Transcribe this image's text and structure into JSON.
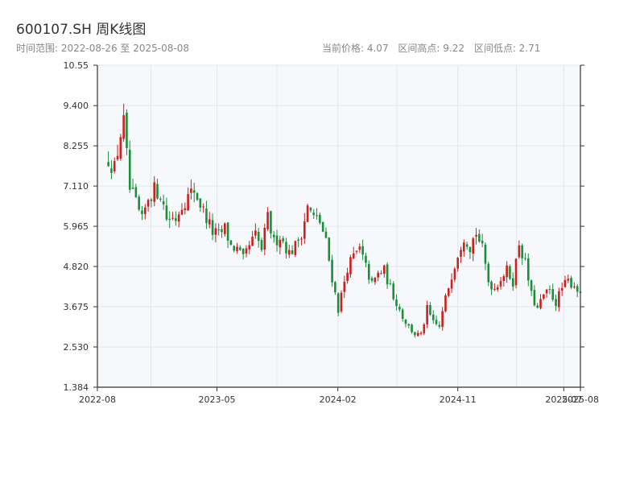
{
  "header": {
    "title": "600107.SH 周K线图",
    "range_label": "时间范围: 2022-08-26 至 2025-08-08",
    "current_price": "当前价格: 4.07",
    "high_price": "区间高点: 9.22",
    "low_price": "区间低点: 2.71"
  },
  "chart_data": {
    "type": "candlestick",
    "title": "600107.SH 周K线图",
    "y_ticks": [
      "1.384",
      "2.530",
      "3.675",
      "4.820",
      "5.965",
      "7.110",
      "8.255",
      "9.400",
      "10.55"
    ],
    "ylim": [
      1.384,
      10.55
    ],
    "x_ticks": [
      {
        "label": "2022-08",
        "date": "2022-08-01"
      },
      {
        "label": "2023-05",
        "date": "2023-05-01"
      },
      {
        "label": "2024-02",
        "date": "2024-02-01"
      },
      {
        "label": "2024-11",
        "date": "2024-11-01"
      },
      {
        "label": "2025-07",
        "date": "2025-07-01"
      },
      {
        "label": "2025-08",
        "date": "2025-08-08"
      }
    ],
    "xlim": [
      "2022-08-01",
      "2025-08-08"
    ],
    "grid": true,
    "colors": {
      "up": "#cc1f1f",
      "down": "#1a8f3a"
    },
    "anchors": [
      [
        "2022-08-26",
        7.9
      ],
      [
        "2022-09-09",
        7.6
      ],
      [
        "2022-09-23",
        8.6
      ],
      [
        "2022-09-30",
        8.9
      ],
      [
        "2022-10-14",
        7.0
      ],
      [
        "2022-10-28",
        6.6
      ],
      [
        "2022-11-11",
        6.1
      ],
      [
        "2022-11-25",
        6.8
      ],
      [
        "2022-12-09",
        7.0
      ],
      [
        "2022-12-23",
        6.9
      ],
      [
        "2023-01-06",
        6.2
      ],
      [
        "2023-01-27",
        6.2
      ],
      [
        "2023-02-10",
        6.6
      ],
      [
        "2023-02-24",
        6.8
      ],
      [
        "2023-03-10",
        7.0
      ],
      [
        "2023-03-24",
        6.6
      ],
      [
        "2023-04-07",
        6.2
      ],
      [
        "2023-04-21",
        5.8
      ],
      [
        "2023-05-05",
        5.7
      ],
      [
        "2023-05-19",
        5.9
      ],
      [
        "2023-06-02",
        5.4
      ],
      [
        "2023-06-16",
        5.3
      ],
      [
        "2023-06-30",
        5.0
      ],
      [
        "2023-07-14",
        5.4
      ],
      [
        "2023-07-28",
        5.7
      ],
      [
        "2023-08-11",
        5.3
      ],
      [
        "2023-08-25",
        6.2
      ],
      [
        "2023-09-08",
        5.5
      ],
      [
        "2023-09-22",
        5.7
      ],
      [
        "2023-10-13",
        5.2
      ],
      [
        "2023-10-27",
        5.4
      ],
      [
        "2023-11-10",
        5.8
      ],
      [
        "2023-11-24",
        6.5
      ],
      [
        "2023-12-08",
        6.2
      ],
      [
        "2023-12-22",
        6.1
      ],
      [
        "2024-01-05",
        5.5
      ],
      [
        "2024-01-19",
        4.5
      ],
      [
        "2024-02-02",
        3.6
      ],
      [
        "2024-02-23",
        4.8
      ],
      [
        "2024-03-08",
        5.1
      ],
      [
        "2024-03-22",
        5.3
      ],
      [
        "2024-04-05",
        4.8
      ],
      [
        "2024-04-19",
        4.3
      ],
      [
        "2024-05-03",
        4.6
      ],
      [
        "2024-05-17",
        4.7
      ],
      [
        "2024-05-31",
        4.2
      ],
      [
        "2024-06-14",
        3.8
      ],
      [
        "2024-06-28",
        3.4
      ],
      [
        "2024-07-12",
        3.1
      ],
      [
        "2024-07-26",
        2.9
      ],
      [
        "2024-08-09",
        2.85
      ],
      [
        "2024-08-23",
        3.6
      ],
      [
        "2024-09-06",
        3.2
      ],
      [
        "2024-09-20",
        3.1
      ],
      [
        "2024-10-04",
        3.9
      ],
      [
        "2024-10-18",
        4.6
      ],
      [
        "2024-11-01",
        5.2
      ],
      [
        "2024-11-15",
        5.7
      ],
      [
        "2024-11-29",
        5.4
      ],
      [
        "2024-12-13",
        5.8
      ],
      [
        "2024-12-27",
        5.3
      ],
      [
        "2025-01-10",
        4.4
      ],
      [
        "2025-01-24",
        4.2
      ],
      [
        "2025-02-07",
        4.5
      ],
      [
        "2025-02-21",
        4.7
      ],
      [
        "2025-03-07",
        4.4
      ],
      [
        "2025-03-21",
        5.5
      ],
      [
        "2025-04-04",
        4.9
      ],
      [
        "2025-04-18",
        4.0
      ],
      [
        "2025-05-02",
        3.6
      ],
      [
        "2025-05-16",
        4.0
      ],
      [
        "2025-05-30",
        4.1
      ],
      [
        "2025-06-13",
        3.8
      ],
      [
        "2025-06-27",
        4.2
      ],
      [
        "2025-07-11",
        4.4
      ],
      [
        "2025-07-25",
        4.3
      ],
      [
        "2025-08-08",
        4.07
      ]
    ]
  }
}
